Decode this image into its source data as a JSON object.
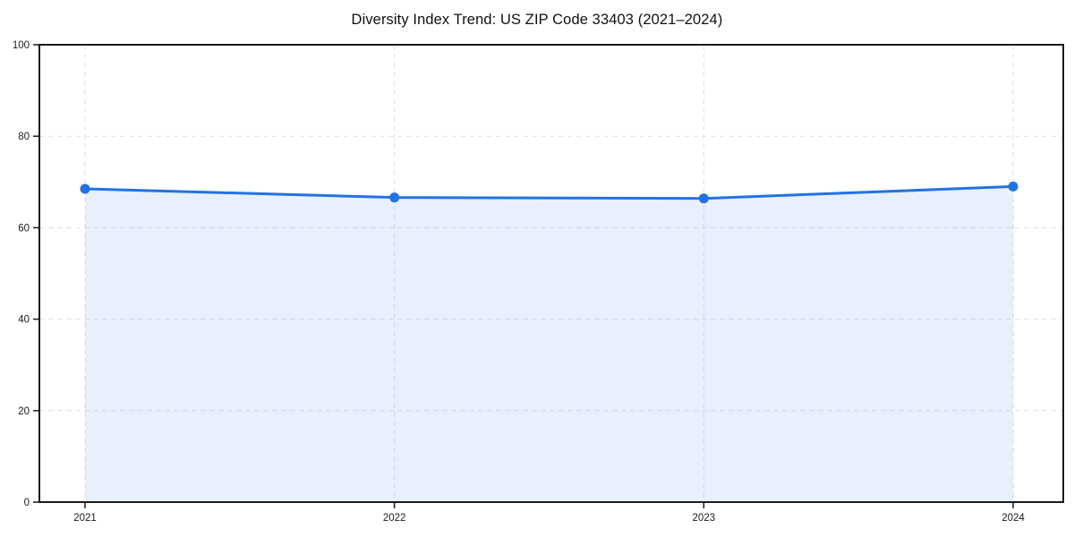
{
  "chart_data": {
    "type": "area",
    "title": "Diversity Index Trend: US ZIP Code 33403 (2021–2024)",
    "categories": [
      "2021",
      "2022",
      "2023",
      "2024"
    ],
    "series": [
      {
        "name": "Diversity Index",
        "values": [
          68.5,
          66.6,
          66.4,
          69.0
        ]
      }
    ],
    "xlabel": "",
    "ylabel": "",
    "ylim": [
      0,
      100
    ],
    "yticks": [
      0,
      20,
      40,
      60,
      80,
      100
    ],
    "grid": "dashed horizontal and vertical",
    "legend": "none",
    "colors": {
      "line": "#2372e2",
      "marker": "#2372e2",
      "fill": "#2372e2",
      "fill_opacity": 0.11,
      "gridline": "#e2e2e2",
      "spine": "#1a1a1a",
      "tick_text": "#1a1a1a"
    }
  }
}
